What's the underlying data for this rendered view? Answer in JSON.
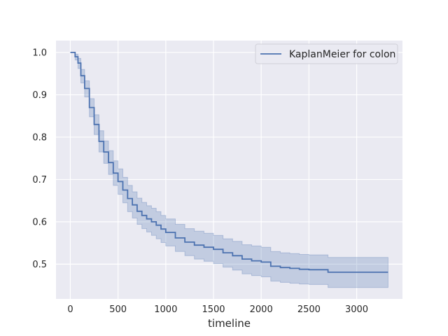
{
  "chart_data": {
    "type": "line",
    "title": "",
    "xlabel": "timeline",
    "ylabel": "",
    "xlim": [
      -150,
      3480
    ],
    "ylim": [
      0.418,
      1.028
    ],
    "grid": true,
    "legend_position": "top-right",
    "x_ticks": [
      0,
      500,
      1000,
      1500,
      2000,
      2500,
      3000
    ],
    "x_tick_labels": [
      "0",
      "500",
      "1000",
      "1500",
      "2000",
      "2500",
      "3000"
    ],
    "y_ticks": [
      0.5,
      0.6,
      0.7,
      0.8,
      0.9,
      1.0
    ],
    "y_tick_labels": [
      "0.5",
      "0.6",
      "0.7",
      "0.8",
      "0.9",
      "1.0"
    ],
    "colors": {
      "line": "#4c72b0",
      "band": "#4c72b0",
      "plot_bg": "#eaeaf2",
      "grid": "#ffffff"
    },
    "series": [
      {
        "name": "KaplanMeier for colon",
        "x": [
          0,
          50,
          80,
          110,
          150,
          200,
          250,
          300,
          350,
          400,
          450,
          500,
          550,
          600,
          650,
          700,
          750,
          800,
          850,
          900,
          950,
          1000,
          1100,
          1200,
          1300,
          1400,
          1500,
          1600,
          1700,
          1800,
          1900,
          2000,
          2100,
          2200,
          2300,
          2400,
          2500,
          2600,
          2700,
          2800,
          3000,
          3200,
          3329
        ],
        "survival": [
          1.0,
          0.99,
          0.975,
          0.945,
          0.915,
          0.87,
          0.83,
          0.79,
          0.765,
          0.74,
          0.715,
          0.695,
          0.675,
          0.655,
          0.64,
          0.625,
          0.615,
          0.607,
          0.6,
          0.592,
          0.583,
          0.575,
          0.562,
          0.552,
          0.545,
          0.54,
          0.535,
          0.527,
          0.52,
          0.512,
          0.508,
          0.505,
          0.495,
          0.492,
          0.49,
          0.488,
          0.487,
          0.487,
          0.481,
          0.481,
          0.481,
          0.481,
          0.481
        ],
        "ci_lower": [
          1.0,
          0.982,
          0.962,
          0.928,
          0.895,
          0.848,
          0.806,
          0.765,
          0.738,
          0.712,
          0.686,
          0.665,
          0.645,
          0.624,
          0.609,
          0.594,
          0.584,
          0.576,
          0.568,
          0.56,
          0.551,
          0.543,
          0.53,
          0.52,
          0.512,
          0.507,
          0.501,
          0.493,
          0.486,
          0.477,
          0.473,
          0.47,
          0.46,
          0.457,
          0.455,
          0.453,
          0.452,
          0.452,
          0.445,
          0.445,
          0.445,
          0.445,
          0.445
        ],
        "ci_upper": [
          1.0,
          0.996,
          0.986,
          0.96,
          0.933,
          0.891,
          0.853,
          0.815,
          0.791,
          0.768,
          0.744,
          0.725,
          0.705,
          0.686,
          0.671,
          0.656,
          0.646,
          0.638,
          0.632,
          0.624,
          0.615,
          0.607,
          0.594,
          0.584,
          0.578,
          0.573,
          0.568,
          0.56,
          0.554,
          0.546,
          0.543,
          0.54,
          0.53,
          0.527,
          0.525,
          0.523,
          0.522,
          0.522,
          0.516,
          0.516,
          0.516,
          0.516,
          0.516
        ]
      }
    ]
  }
}
